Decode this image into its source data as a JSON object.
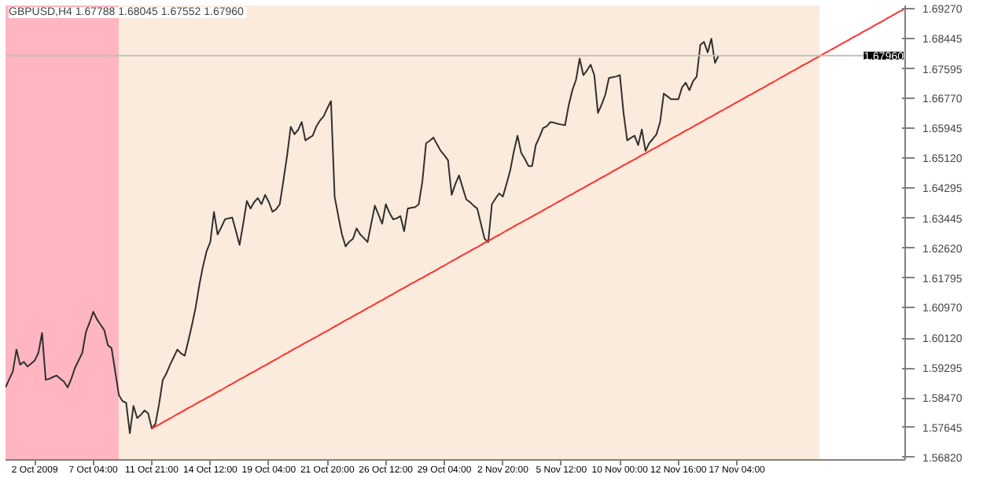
{
  "chart_data": {
    "type": "line",
    "title": "GBPUSD,H4  1.67788 1.68045 1.67552 1.67960",
    "categories": [
      null,
      null,
      null,
      null,
      null,
      null,
      null,
      null,
      "2 Oct 2009",
      null,
      null,
      null,
      null,
      null,
      null,
      null,
      null,
      null,
      null,
      null,
      null,
      null,
      null,
      null,
      "7 Oct 04:00",
      null,
      null,
      null,
      null,
      null,
      null,
      null,
      null,
      null,
      null,
      null,
      null,
      null,
      null,
      null,
      "11 Oct 21:00",
      null,
      null,
      null,
      null,
      null,
      null,
      null,
      null,
      null,
      null,
      null,
      null,
      null,
      null,
      null,
      "14 Oct 12:00",
      null,
      null,
      null,
      null,
      null,
      null,
      null,
      null,
      null,
      null,
      null,
      null,
      null,
      null,
      null,
      "19 Oct 04:00",
      null,
      null,
      null,
      null,
      null,
      null,
      null,
      null,
      null,
      null,
      null,
      null,
      null,
      null,
      null,
      "21 Oct 20:00",
      null,
      null,
      null,
      null,
      null,
      null,
      null,
      null,
      null,
      null,
      null,
      null,
      null,
      null,
      null,
      "26 Oct 12:00",
      null,
      null,
      null,
      null,
      null,
      null,
      null,
      null,
      null,
      null,
      null,
      null,
      null,
      null,
      null,
      "29 Oct 04:00",
      null,
      null,
      null,
      null,
      null,
      null,
      null,
      null,
      null,
      null,
      null,
      null,
      null,
      null,
      null,
      "2 Nov 20:00",
      null,
      null,
      null,
      null,
      null,
      null,
      null,
      null,
      null,
      null,
      null,
      null,
      null,
      null,
      null,
      "5 Nov 12:00",
      null,
      null,
      null,
      null,
      null,
      null,
      null,
      null,
      null,
      null,
      null,
      null,
      null,
      null,
      null,
      "10 Nov 00:00",
      null,
      null,
      null,
      null,
      null,
      null,
      null,
      null,
      null,
      null,
      null,
      null,
      null,
      null,
      null,
      "12 Nov 16:00",
      null,
      null,
      null,
      null,
      null,
      null,
      null,
      null,
      null,
      null,
      null,
      null,
      null,
      null,
      null,
      "17 Nov 04:00",
      null,
      null,
      null,
      null,
      null,
      null,
      null,
      null,
      null,
      null,
      null,
      null,
      null,
      null,
      null,
      null,
      null,
      null,
      null,
      null,
      null,
      null,
      null,
      null,
      null,
      null,
      null,
      null,
      null,
      null,
      null,
      null,
      null,
      null,
      null,
      null,
      null,
      null,
      null,
      null,
      null,
      null,
      null,
      null,
      null,
      null
    ],
    "ylim": [
      1.5675,
      1.6935
    ],
    "yticks": [
      {
        "value": 1.6927,
        "label": "1.69270"
      },
      {
        "value": 1.68445,
        "label": "1.68445"
      },
      {
        "value": 1.67595,
        "label": "1.67595"
      },
      {
        "value": 1.6677,
        "label": "1.66770"
      },
      {
        "value": 1.65945,
        "label": "1.65945"
      },
      {
        "value": 1.6512,
        "label": "1.65120"
      },
      {
        "value": 1.64295,
        "label": "1.64295"
      },
      {
        "value": 1.63445,
        "label": "1.63445"
      },
      {
        "value": 1.6262,
        "label": "1.62620"
      },
      {
        "value": 1.61795,
        "label": "1.61795"
      },
      {
        "value": 1.6097,
        "label": "1.60970"
      },
      {
        "value": 1.6012,
        "label": "1.60120"
      },
      {
        "value": 1.59295,
        "label": "1.59295"
      },
      {
        "value": 1.5847,
        "label": "1.58470"
      },
      {
        "value": 1.57645,
        "label": "1.57645"
      },
      {
        "value": 1.5682,
        "label": "1.56820"
      }
    ],
    "grid": false,
    "line_style": "solid",
    "ref_lines": [
      {
        "axis": "y",
        "value": 1.6796,
        "label": "1.67960",
        "color": "#c0c0c0"
      }
    ],
    "series": [
      {
        "color": "#303030",
        "values": [
          1.5876,
          1.5898,
          1.592,
          1.5981,
          1.5939,
          1.5947,
          1.5934,
          1.5942,
          1.5951,
          1.5972,
          1.6027,
          1.5897,
          1.59,
          1.5905,
          1.5909,
          1.59,
          1.5892,
          1.5876,
          1.59,
          1.593,
          1.5951,
          1.5972,
          1.603,
          1.6056,
          1.6086,
          1.6065,
          1.605,
          1.6035,
          1.5993,
          1.5985,
          1.592,
          1.5855,
          1.5838,
          1.5833,
          1.5749,
          1.5825,
          1.5791,
          1.58,
          1.5812,
          1.5804,
          1.5762,
          1.5775,
          1.583,
          1.5897,
          1.5915,
          1.5939,
          1.596,
          1.5981,
          1.597,
          1.5964,
          1.6006,
          1.605,
          1.6098,
          1.616,
          1.6212,
          1.6254,
          1.6279,
          1.6363,
          1.63,
          1.632,
          1.6342,
          1.6345,
          1.6347,
          1.631,
          1.6271,
          1.633,
          1.6393,
          1.6372,
          1.639,
          1.6401,
          1.6384,
          1.641,
          1.639,
          1.6363,
          1.637,
          1.6384,
          1.645,
          1.6519,
          1.6599,
          1.6578,
          1.659,
          1.6612,
          1.6561,
          1.6568,
          1.6574,
          1.66,
          1.6616,
          1.6628,
          1.665,
          1.667,
          1.6405,
          1.6351,
          1.63,
          1.6267,
          1.628,
          1.6288,
          1.6317,
          1.63,
          1.629,
          1.6279,
          1.633,
          1.638,
          1.6355,
          1.633,
          1.6384,
          1.636,
          1.6342,
          1.6345,
          1.6351,
          1.6309,
          1.6372,
          1.6374,
          1.6376,
          1.6384,
          1.6448,
          1.6553,
          1.656,
          1.6569,
          1.655,
          1.6532,
          1.652,
          1.6506,
          1.641,
          1.644,
          1.6464,
          1.643,
          1.6397,
          1.639,
          1.638,
          1.6372,
          1.633,
          1.6288,
          1.6279,
          1.6384,
          1.64,
          1.6414,
          1.6405,
          1.644,
          1.6477,
          1.653,
          1.6574,
          1.6527,
          1.651,
          1.649,
          1.649,
          1.6548,
          1.657,
          1.6595,
          1.66,
          1.6612,
          1.661,
          1.6607,
          1.6605,
          1.6603,
          1.6658,
          1.67,
          1.6729,
          1.6788,
          1.6742,
          1.6755,
          1.6771,
          1.6742,
          1.6637,
          1.666,
          1.6687,
          1.6734,
          1.6736,
          1.6738,
          1.6742,
          1.6637,
          1.6561,
          1.6568,
          1.6574,
          1.6548,
          1.6591,
          1.6532,
          1.6553,
          1.6565,
          1.6578,
          1.6612,
          1.6691,
          1.6683,
          1.6675,
          1.6675,
          1.6675,
          1.6708,
          1.6721,
          1.67,
          1.6725,
          1.6738,
          1.6826,
          1.6834,
          1.6805,
          1.6843,
          1.6776,
          1.6796,
          null,
          null,
          null,
          null,
          null,
          null,
          null,
          null,
          null,
          null,
          null,
          null,
          null,
          null,
          null,
          null,
          null,
          null,
          null,
          null,
          null,
          null,
          null,
          null,
          null,
          null,
          null,
          null,
          null,
          null,
          null,
          null,
          null,
          null,
          null,
          null,
          null,
          null,
          null,
          null,
          null,
          null,
          null,
          null,
          null,
          null,
          null,
          null,
          null,
          null,
          null
        ]
      },
      {
        "type": "line",
        "color": "#ff3030",
        "values": [
          null,
          null,
          null,
          null,
          null,
          null,
          null,
          null,
          null,
          null,
          null,
          null,
          null,
          null,
          null,
          null,
          null,
          null,
          null,
          null,
          null,
          null,
          null,
          null,
          null,
          null,
          null,
          null,
          null,
          null,
          null,
          null,
          null,
          null,
          null,
          null,
          null,
          null,
          null,
          null,
          1.5762,
          1.5768,
          1.5773,
          1.5779,
          1.5785,
          1.579,
          1.5796,
          1.5802,
          1.5807,
          1.5813,
          1.5819,
          1.5824,
          1.583,
          1.5836,
          1.5841,
          1.5847,
          1.5852,
          1.5858,
          1.5864,
          1.5869,
          1.5875,
          1.5881,
          1.5886,
          1.5892,
          1.5898,
          1.5903,
          1.5909,
          1.5915,
          1.592,
          1.5926,
          1.5932,
          1.5937,
          1.5943,
          1.5949,
          1.5954,
          1.596,
          1.5966,
          1.5971,
          1.5977,
          1.5983,
          1.5988,
          1.5994,
          1.6,
          1.6005,
          1.6011,
          1.6016,
          1.6022,
          1.6028,
          1.6033,
          1.6039,
          1.6045,
          1.605,
          1.6056,
          1.6062,
          1.6067,
          1.6073,
          1.6079,
          1.6084,
          1.609,
          1.6096,
          1.6101,
          1.6107,
          1.6113,
          1.6118,
          1.6124,
          1.613,
          1.6135,
          1.6141,
          1.6147,
          1.6152,
          1.6158,
          1.6164,
          1.6169,
          1.6175,
          1.618,
          1.6186,
          1.6192,
          1.6197,
          1.6203,
          1.6209,
          1.6214,
          1.622,
          1.6226,
          1.6231,
          1.6237,
          1.6243,
          1.6248,
          1.6254,
          1.626,
          1.6265,
          1.6271,
          1.6277,
          1.6282,
          1.6288,
          1.6294,
          1.6299,
          1.6305,
          1.6311,
          1.6316,
          1.6322,
          1.6328,
          1.6333,
          1.6339,
          1.6344,
          1.635,
          1.6356,
          1.6361,
          1.6367,
          1.6373,
          1.6378,
          1.6384,
          1.639,
          1.6395,
          1.6401,
          1.6407,
          1.6412,
          1.6418,
          1.6424,
          1.6429,
          1.6435,
          1.6441,
          1.6446,
          1.6452,
          1.6458,
          1.6463,
          1.6469,
          1.6475,
          1.648,
          1.6486,
          1.6492,
          1.6497,
          1.6503,
          1.6508,
          1.6514,
          1.652,
          1.6525,
          1.6531,
          1.6537,
          1.6542,
          1.6548,
          1.6554,
          1.6559,
          1.6565,
          1.6571,
          1.6576,
          1.6582,
          1.6588,
          1.6593,
          1.6599,
          1.6605,
          1.661,
          1.6616,
          1.6622,
          1.6627,
          1.6633,
          1.6639,
          1.6644,
          1.665,
          1.6655,
          1.6661,
          1.6667,
          1.6672,
          1.6678,
          1.6684,
          1.6689,
          1.6695,
          1.6701,
          1.6706,
          1.6712,
          1.6718,
          1.6723,
          1.6729,
          1.6735,
          1.674,
          1.6746,
          1.6752,
          1.6757,
          1.6763,
          1.6769,
          1.6774,
          1.678,
          1.6786,
          1.6791,
          1.6797,
          1.6803,
          1.6808,
          1.6814,
          1.6819,
          1.6825,
          1.6831,
          1.6836,
          1.6842,
          1.6848,
          1.6853,
          1.6859,
          1.6865,
          1.687,
          1.6876,
          1.6882,
          1.6887,
          1.6893,
          1.6899,
          1.6904,
          1.691,
          1.6916,
          1.6921,
          1.6927
        ]
      }
    ]
  }
}
